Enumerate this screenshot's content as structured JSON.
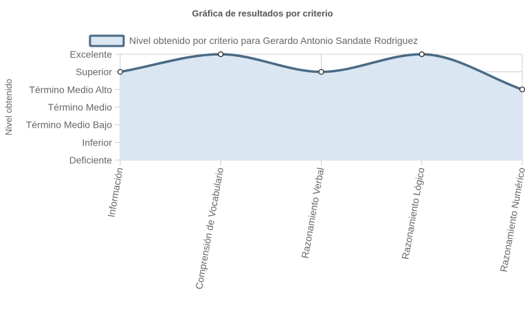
{
  "chart_data": {
    "type": "line",
    "title": "Gráfica de resultados por criterio",
    "ylabel": "Nivel obtenido",
    "xlabel": "",
    "categories": [
      "Información",
      "Comprensión de Vocabulario",
      "Razonamiento Verbal",
      "Razonamiento Lógico",
      "Razonamiento Numérico"
    ],
    "y_levels": [
      "Deficiente",
      "Inferior",
      "Término Medio Bajo",
      "Término Medio",
      "Término Medio Alto",
      "Superior",
      "Excelente"
    ],
    "series": [
      {
        "name": "Nivel obtenido por criterio para Gerardo Antonio Sandate Rodriguez",
        "values": [
          5,
          6,
          5,
          6,
          4
        ],
        "fill": true
      }
    ],
    "ylim": [
      0,
      6
    ],
    "grid": true,
    "legend": "top",
    "colors": {
      "line": "#4a6a85",
      "fill": "#dae6f2",
      "grid": "#cccccc",
      "point_fill": "#ffffff",
      "point_stroke": "#222222"
    }
  }
}
